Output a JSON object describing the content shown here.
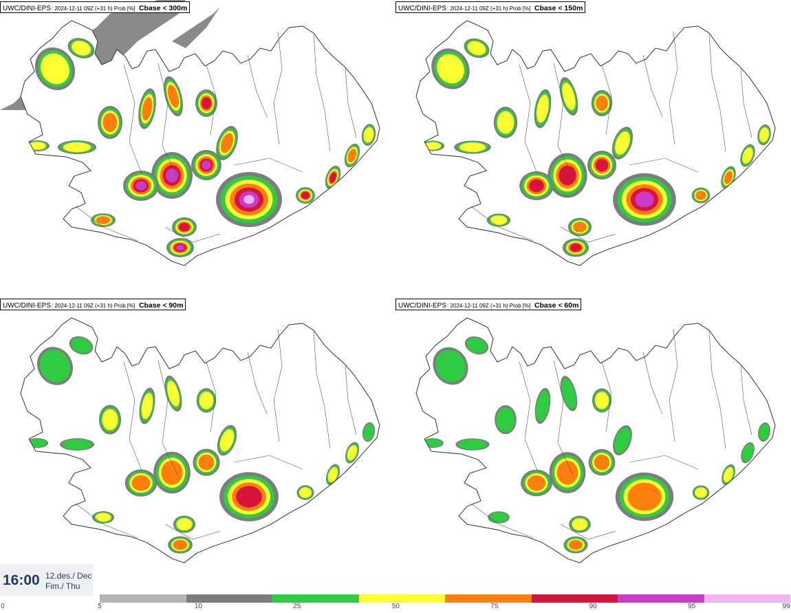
{
  "panels": [
    {
      "model": "UWC/DINI-EPS",
      "meta": ": 2024-12-11 09Z (+31 h) Prob [%]",
      "field": "Cbase < 300m",
      "intensity": 1.0
    },
    {
      "model": "UWC/DINI-EPS",
      "meta": ": 2024-12-11 09Z (+31 h) Prob [%]",
      "field": "Cbase < 150m",
      "intensity": 0.85
    },
    {
      "model": "UWC/DINI-EPS",
      "meta": ": 2024-12-11 09Z (+31 h) Prob [%]",
      "field": "Cbase < 90m",
      "intensity": 0.65
    },
    {
      "model": "UWC/DINI-EPS",
      "meta": ": 2024-12-11 09Z (+31 h) Prob [%]",
      "field": "Cbase < 60m",
      "intensity": 0.6
    }
  ],
  "time": {
    "value": "16:00",
    "line1": "12.des./ Dec",
    "line2": "Fim./ Thu"
  },
  "legend": {
    "ticks": [
      "0",
      "5",
      "10",
      "25",
      "50",
      "75",
      "90",
      "95",
      "99"
    ],
    "colors": [
      "#b4b4b4",
      "#7d7d7d",
      "#2ecc40",
      "#ffff33",
      "#ff7f0e",
      "#d7143c",
      "#c83cc8",
      "#f0b4f0"
    ]
  }
}
